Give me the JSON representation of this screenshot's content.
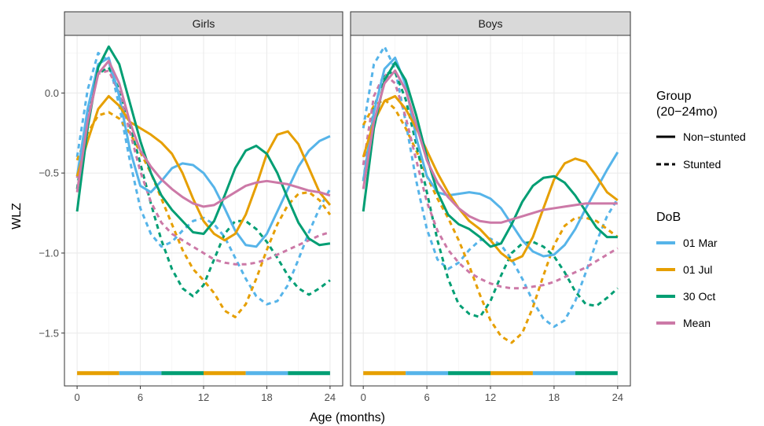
{
  "chart_data": {
    "type": "line",
    "xlabel": "Age (months)",
    "ylabel": "WLZ",
    "xlim": [
      -1.2,
      25.2
    ],
    "ylim": [
      -1.83,
      0.36
    ],
    "x_ticks": [
      0,
      6,
      12,
      18,
      24
    ],
    "y_ticks": [
      0.0,
      -0.5,
      -1.0,
      -1.5
    ],
    "y_tick_labels": [
      "0.0",
      "−0.5",
      "−1.0",
      "−1.5"
    ],
    "grid": true,
    "legend_position": "right",
    "x": [
      0,
      1,
      2,
      3,
      4,
      5,
      6,
      7,
      8,
      9,
      10,
      11,
      12,
      13,
      14,
      15,
      16,
      17,
      18,
      19,
      20,
      21,
      22,
      23,
      24
    ],
    "panels": [
      {
        "title": "Girls",
        "series": [
          {
            "dob": "01 Mar",
            "group": "Non−stunted",
            "values": [
              -0.52,
              -0.1,
              0.18,
              0.22,
              -0.02,
              -0.35,
              -0.58,
              -0.62,
              -0.55,
              -0.47,
              -0.44,
              -0.45,
              -0.5,
              -0.59,
              -0.72,
              -0.86,
              -0.95,
              -0.96,
              -0.88,
              -0.74,
              -0.6,
              -0.46,
              -0.36,
              -0.3,
              -0.27
            ]
          },
          {
            "dob": "01 Jul",
            "group": "Non−stunted",
            "values": [
              -0.52,
              -0.3,
              -0.1,
              -0.02,
              -0.08,
              -0.18,
              -0.22,
              -0.26,
              -0.31,
              -0.38,
              -0.5,
              -0.66,
              -0.8,
              -0.88,
              -0.92,
              -0.88,
              -0.76,
              -0.58,
              -0.38,
              -0.26,
              -0.24,
              -0.32,
              -0.47,
              -0.62,
              -0.7
            ]
          },
          {
            "dob": "30 Oct",
            "group": "Non−stunted",
            "values": [
              -0.74,
              -0.22,
              0.16,
              0.29,
              0.18,
              -0.06,
              -0.3,
              -0.5,
              -0.64,
              -0.73,
              -0.8,
              -0.87,
              -0.88,
              -0.8,
              -0.64,
              -0.47,
              -0.36,
              -0.33,
              -0.38,
              -0.5,
              -0.66,
              -0.81,
              -0.91,
              -0.95,
              -0.94
            ]
          },
          {
            "dob": "Mean",
            "group": "Non−stunted",
            "values": [
              -0.62,
              -0.18,
              0.12,
              0.2,
              0.06,
              -0.18,
              -0.36,
              -0.46,
              -0.54,
              -0.6,
              -0.65,
              -0.69,
              -0.71,
              -0.7,
              -0.66,
              -0.62,
              -0.58,
              -0.56,
              -0.55,
              -0.56,
              -0.57,
              -0.59,
              -0.61,
              -0.62,
              -0.64
            ]
          },
          {
            "dob": "01 Mar",
            "group": "Stunted",
            "values": [
              -0.4,
              0.02,
              0.25,
              0.2,
              -0.08,
              -0.42,
              -0.72,
              -0.88,
              -0.96,
              -0.93,
              -0.86,
              -0.8,
              -0.78,
              -0.82,
              -0.9,
              -1.03,
              -1.16,
              -1.27,
              -1.32,
              -1.3,
              -1.2,
              -1.04,
              -0.87,
              -0.72,
              -0.6
            ]
          },
          {
            "dob": "01 Jul",
            "group": "Stunted",
            "values": [
              -0.42,
              -0.25,
              -0.14,
              -0.12,
              -0.16,
              -0.25,
              -0.37,
              -0.5,
              -0.66,
              -0.82,
              -0.98,
              -1.1,
              -1.17,
              -1.25,
              -1.36,
              -1.4,
              -1.32,
              -1.16,
              -0.98,
              -0.82,
              -0.7,
              -0.63,
              -0.62,
              -0.67,
              -0.76
            ]
          },
          {
            "dob": "30 Oct",
            "group": "Stunted",
            "values": [
              -0.6,
              -0.15,
              0.12,
              0.16,
              0.02,
              -0.2,
              -0.44,
              -0.69,
              -0.92,
              -1.1,
              -1.22,
              -1.27,
              -1.2,
              -1.04,
              -0.88,
              -0.8,
              -0.8,
              -0.85,
              -0.93,
              -1.03,
              -1.14,
              -1.22,
              -1.26,
              -1.22,
              -1.17
            ]
          },
          {
            "dob": "Mean",
            "group": "Stunted",
            "values": [
              -0.53,
              -0.12,
              0.12,
              0.14,
              0.0,
              -0.24,
              -0.49,
              -0.68,
              -0.81,
              -0.88,
              -0.92,
              -0.96,
              -1.0,
              -1.04,
              -1.06,
              -1.07,
              -1.07,
              -1.06,
              -1.04,
              -1.01,
              -0.98,
              -0.95,
              -0.92,
              -0.89,
              -0.87
            ]
          }
        ]
      },
      {
        "title": "Boys",
        "series": [
          {
            "dob": "01 Mar",
            "group": "Non−stunted",
            "values": [
              -0.55,
              -0.12,
              0.15,
              0.22,
              0.05,
              -0.28,
              -0.52,
              -0.62,
              -0.64,
              -0.63,
              -0.62,
              -0.63,
              -0.66,
              -0.72,
              -0.82,
              -0.92,
              -0.99,
              -1.02,
              -1.01,
              -0.95,
              -0.85,
              -0.72,
              -0.6,
              -0.48,
              -0.37
            ]
          },
          {
            "dob": "01 Jul",
            "group": "Non−stunted",
            "values": [
              -0.4,
              -0.18,
              -0.05,
              -0.02,
              -0.1,
              -0.22,
              -0.36,
              -0.5,
              -0.62,
              -0.72,
              -0.8,
              -0.85,
              -0.92,
              -1.0,
              -1.05,
              -1.02,
              -0.9,
              -0.72,
              -0.54,
              -0.44,
              -0.41,
              -0.43,
              -0.52,
              -0.62,
              -0.67
            ]
          },
          {
            "dob": "30 Oct",
            "group": "Non−stunted",
            "values": [
              -0.74,
              -0.22,
              0.08,
              0.19,
              0.08,
              -0.14,
              -0.4,
              -0.62,
              -0.76,
              -0.82,
              -0.85,
              -0.9,
              -0.96,
              -0.94,
              -0.82,
              -0.68,
              -0.58,
              -0.53,
              -0.52,
              -0.56,
              -0.64,
              -0.74,
              -0.84,
              -0.9,
              -0.9
            ]
          },
          {
            "dob": "Mean",
            "group": "Non−stunted",
            "values": [
              -0.6,
              -0.18,
              0.06,
              0.14,
              0.02,
              -0.2,
              -0.42,
              -0.56,
              -0.65,
              -0.72,
              -0.77,
              -0.8,
              -0.81,
              -0.81,
              -0.79,
              -0.77,
              -0.75,
              -0.73,
              -0.72,
              -0.71,
              -0.7,
              -0.69,
              -0.69,
              -0.69,
              -0.69
            ]
          },
          {
            "dob": "01 Mar",
            "group": "Stunted",
            "values": [
              -0.22,
              0.18,
              0.29,
              0.15,
              -0.18,
              -0.55,
              -0.85,
              -1.04,
              -1.1,
              -1.06,
              -0.98,
              -0.92,
              -0.91,
              -0.95,
              -1.04,
              -1.16,
              -1.3,
              -1.41,
              -1.46,
              -1.42,
              -1.3,
              -1.12,
              -0.93,
              -0.77,
              -0.66
            ]
          },
          {
            "dob": "01 Jul",
            "group": "Stunted",
            "values": [
              -0.2,
              -0.08,
              -0.04,
              -0.1,
              -0.22,
              -0.36,
              -0.52,
              -0.66,
              -0.78,
              -0.92,
              -1.08,
              -1.26,
              -1.42,
              -1.52,
              -1.56,
              -1.5,
              -1.34,
              -1.14,
              -0.95,
              -0.83,
              -0.78,
              -0.78,
              -0.8,
              -0.85,
              -0.9
            ]
          },
          {
            "dob": "30 Oct",
            "group": "Stunted",
            "values": [
              -0.55,
              -0.1,
              0.12,
              0.13,
              -0.04,
              -0.32,
              -0.62,
              -0.92,
              -1.16,
              -1.32,
              -1.38,
              -1.4,
              -1.3,
              -1.14,
              -1.0,
              -0.94,
              -0.93,
              -0.96,
              -1.02,
              -1.12,
              -1.24,
              -1.32,
              -1.33,
              -1.28,
              -1.22
            ]
          },
          {
            "dob": "Mean",
            "group": "Stunted",
            "values": [
              -0.45,
              -0.02,
              0.12,
              0.06,
              -0.15,
              -0.42,
              -0.68,
              -0.86,
              -0.98,
              -1.06,
              -1.12,
              -1.16,
              -1.19,
              -1.21,
              -1.22,
              -1.22,
              -1.21,
              -1.2,
              -1.18,
              -1.15,
              -1.12,
              -1.09,
              -1.05,
              -1.01,
              -0.97
            ]
          }
        ]
      }
    ],
    "season_bar": {
      "y": -1.75,
      "segments": [
        {
          "from": 0,
          "to": 4,
          "dob": "01 Jul"
        },
        {
          "from": 4,
          "to": 8,
          "dob": "01 Mar"
        },
        {
          "from": 8,
          "to": 12,
          "dob": "30 Oct"
        },
        {
          "from": 12,
          "to": 16,
          "dob": "01 Jul"
        },
        {
          "from": 16,
          "to": 20,
          "dob": "01 Mar"
        },
        {
          "from": 20,
          "to": 24,
          "dob": "30 Oct"
        }
      ]
    },
    "legend": {
      "group_title_line1": "Group",
      "group_title_line2": "(20−24mo)",
      "groups": [
        {
          "label": "Non−stunted",
          "style": "solid"
        },
        {
          "label": "Stunted",
          "style": "dashed"
        }
      ],
      "dob_title": "DoB",
      "dobs": [
        {
          "label": "01 Mar",
          "color": "#56B4E9"
        },
        {
          "label": "01 Jul",
          "color": "#E69F00"
        },
        {
          "label": "30 Oct",
          "color": "#009E73"
        },
        {
          "label": "Mean",
          "color": "#CC79A7"
        }
      ]
    }
  }
}
